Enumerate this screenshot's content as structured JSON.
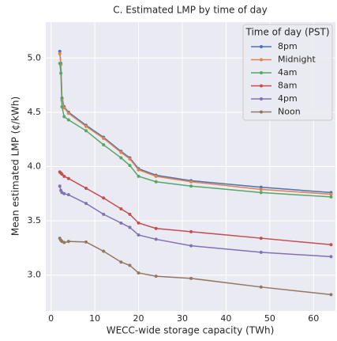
{
  "chart_data": {
    "type": "line",
    "title": "C. Estimated LMP by time of day",
    "x_label": "WECC-wide storage capacity (TWh)",
    "y_label": "Mean estimated LMP (¢/kWh)",
    "x": [
      2,
      2.25,
      2.5,
      3,
      4,
      8,
      12,
      16,
      18,
      20,
      24,
      32,
      48,
      64
    ],
    "series": [
      {
        "name": "8pm",
        "color": "#4c72b0",
        "values": [
          5.06,
          4.95,
          4.63,
          4.55,
          4.5,
          4.38,
          4.27,
          4.14,
          4.08,
          3.98,
          3.92,
          3.87,
          3.81,
          3.76
        ]
      },
      {
        "name": "Midnight",
        "color": "#dd8452",
        "values": [
          5.04,
          4.94,
          4.61,
          4.54,
          4.49,
          4.37,
          4.26,
          4.13,
          4.07,
          3.97,
          3.91,
          3.86,
          3.79,
          3.745
        ]
      },
      {
        "name": "4am",
        "color": "#55a868",
        "values": [
          4.95,
          4.86,
          4.55,
          4.46,
          4.43,
          4.33,
          4.2,
          4.08,
          4.01,
          3.91,
          3.86,
          3.82,
          3.76,
          3.72
        ]
      },
      {
        "name": "8am",
        "color": "#c44e52",
        "values": [
          3.95,
          3.94,
          3.93,
          3.91,
          3.89,
          3.8,
          3.71,
          3.61,
          3.56,
          3.48,
          3.43,
          3.4,
          3.34,
          3.28
        ]
      },
      {
        "name": "4pm",
        "color": "#8172b3",
        "values": [
          3.82,
          3.78,
          3.76,
          3.75,
          3.74,
          3.66,
          3.56,
          3.48,
          3.44,
          3.37,
          3.33,
          3.27,
          3.21,
          3.17
        ]
      },
      {
        "name": "Noon",
        "color": "#937860",
        "values": [
          3.34,
          3.32,
          3.31,
          3.3,
          3.31,
          3.305,
          3.22,
          3.12,
          3.09,
          3.02,
          2.99,
          2.97,
          2.89,
          2.82
        ]
      }
    ],
    "legend_title": "Time of day (PST)",
    "legend_position": "upper-right",
    "xlim": [
      -1.2,
      65
    ],
    "ylim": [
      2.67,
      5.33
    ],
    "xticks": [
      0,
      10,
      20,
      30,
      40,
      50,
      60
    ],
    "yticks": [
      {
        "value": 3,
        "label": "3.0"
      },
      3.5,
      {
        "value": 4,
        "label": "4.0"
      },
      4.5,
      {
        "value": 5,
        "label": "5.0"
      }
    ],
    "grid": true
  }
}
